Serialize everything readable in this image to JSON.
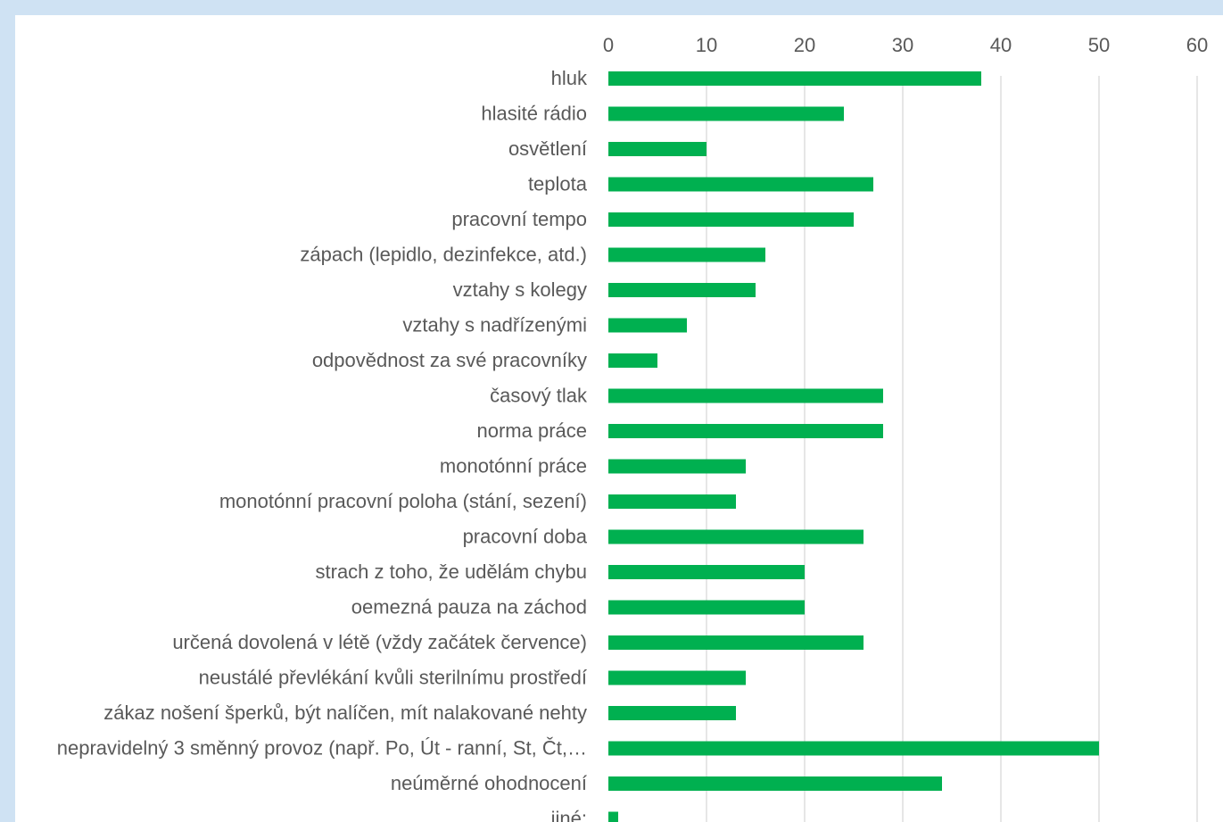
{
  "chart_data": {
    "type": "bar",
    "orientation": "horizontal",
    "categories": [
      "hluk",
      "hlasité rádio",
      "osvětlení",
      "teplota",
      "pracovní tempo",
      "zápach (lepidlo, dezinfekce, atd.)",
      "vztahy s kolegy",
      "vztahy s nadřízenými",
      "odpovědnost za své pracovníky",
      "časový tlak",
      "norma práce",
      "monotónní práce",
      "monotónní pracovní poloha (stání, sezení)",
      "pracovní doba",
      "strach z toho, že udělám chybu",
      "oemezná pauza na záchod",
      "určená dovolená v létě (vždy začátek července)",
      "neustálé převlékání kvůli sterilnímu prostředí",
      "zákaz nošení šperků, být nalíčen, mít nalakované nehty",
      "nepravidelný 3 směnný provoz (např. Po, Út - ranní, St, Čt,…",
      "neúměrné ohodnocení",
      "jiné:"
    ],
    "values": [
      38,
      24,
      10,
      27,
      25,
      16,
      15,
      8,
      5,
      28,
      28,
      14,
      13,
      26,
      20,
      20,
      26,
      14,
      13,
      50,
      34,
      1
    ],
    "xlim": [
      0,
      60
    ],
    "xticks": [
      "0",
      "10",
      "20",
      "30",
      "40",
      "50",
      "60"
    ],
    "title": "",
    "xlabel": "",
    "ylabel": "",
    "grid": true,
    "axis_position": "top",
    "bar_color": "#00b050"
  }
}
